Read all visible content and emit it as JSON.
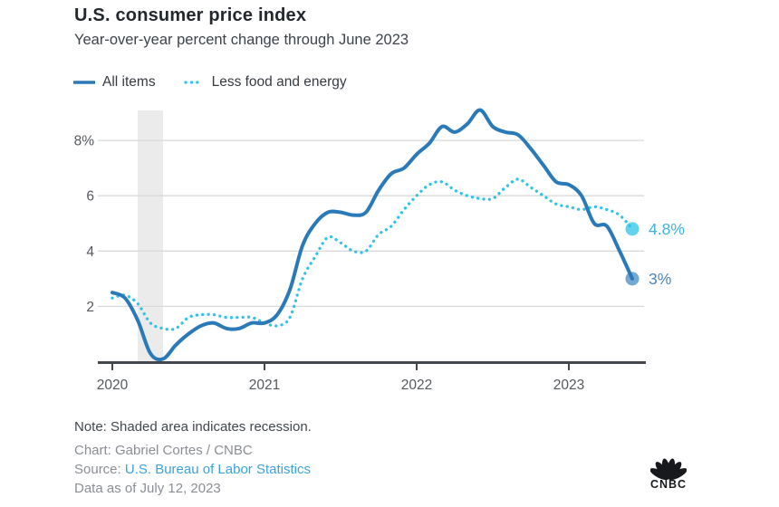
{
  "header": {
    "title": "U.S. consumer price index",
    "subtitle": "Year-over-year percent change through June 2023"
  },
  "legend": [
    {
      "label": "All items",
      "style": "solid"
    },
    {
      "label": "Less food and energy",
      "style": "dotted"
    }
  ],
  "colors": {
    "all_items": "#2a79b8",
    "core": "#2ec3e7",
    "all_items_end_label": "#4e86ba",
    "core_end_label": "#3fb3dc",
    "axis": "#43464b",
    "grid": "#d9d9d9",
    "band": "#ebebeb",
    "tick_text": "#55595f",
    "link": "#3ba2dd"
  },
  "chart_data": {
    "type": "line",
    "title": "U.S. consumer price index",
    "subtitle": "Year-over-year percent change through June 2023",
    "xlabel": "",
    "ylabel": "Year-over-year percent change",
    "ylim": [
      0,
      9.2
    ],
    "yticks": [
      2,
      4,
      6,
      8
    ],
    "ytick_labels": [
      "2",
      "4",
      "6",
      "8%"
    ],
    "xticks": [
      "2020",
      "2021",
      "2022",
      "2023"
    ],
    "xtick_month_indices": [
      0,
      12,
      24,
      36
    ],
    "grid": "horizontal",
    "legend_position": "top-left",
    "months": [
      "2020-01",
      "2020-02",
      "2020-03",
      "2020-04",
      "2020-05",
      "2020-06",
      "2020-07",
      "2020-08",
      "2020-09",
      "2020-10",
      "2020-11",
      "2020-12",
      "2021-01",
      "2021-02",
      "2021-03",
      "2021-04",
      "2021-05",
      "2021-06",
      "2021-07",
      "2021-08",
      "2021-09",
      "2021-10",
      "2021-11",
      "2021-12",
      "2022-01",
      "2022-02",
      "2022-03",
      "2022-04",
      "2022-05",
      "2022-06",
      "2022-07",
      "2022-08",
      "2022-09",
      "2022-10",
      "2022-11",
      "2022-12",
      "2023-01",
      "2023-02",
      "2023-03",
      "2023-04",
      "2023-05",
      "2023-06"
    ],
    "series": [
      {
        "name": "All items",
        "values": [
          2.5,
          2.3,
          1.5,
          0.3,
          0.1,
          0.6,
          1.0,
          1.3,
          1.4,
          1.2,
          1.2,
          1.4,
          1.4,
          1.7,
          2.6,
          4.2,
          5.0,
          5.4,
          5.4,
          5.3,
          5.4,
          6.2,
          6.8,
          7.0,
          7.5,
          7.9,
          8.5,
          8.3,
          8.6,
          9.1,
          8.5,
          8.3,
          8.2,
          7.7,
          7.1,
          6.5,
          6.4,
          6.0,
          5.0,
          4.9,
          4.0,
          3.0
        ],
        "end_label": "3%"
      },
      {
        "name": "Less food and energy",
        "values": [
          2.3,
          2.4,
          2.1,
          1.4,
          1.2,
          1.2,
          1.6,
          1.7,
          1.7,
          1.6,
          1.6,
          1.6,
          1.4,
          1.3,
          1.6,
          3.0,
          3.8,
          4.5,
          4.3,
          4.0,
          4.0,
          4.6,
          4.9,
          5.5,
          6.0,
          6.4,
          6.5,
          6.2,
          6.0,
          5.9,
          5.9,
          6.3,
          6.6,
          6.3,
          6.0,
          5.7,
          5.6,
          5.5,
          5.6,
          5.5,
          5.3,
          4.8
        ],
        "end_label": "4.8%"
      }
    ],
    "recession_band": {
      "start_month_index": 2,
      "end_month_index": 4
    }
  },
  "footer": {
    "note": "Note: Shaded area indicates recession.",
    "credit": "Chart: Gabriel Cortes / CNBC",
    "source_label": "Source: ",
    "source_link": "U.S. Bureau of Labor Statistics",
    "data_as_of": "Data as of July 12, 2023"
  },
  "logo": {
    "text": "CNBC"
  }
}
